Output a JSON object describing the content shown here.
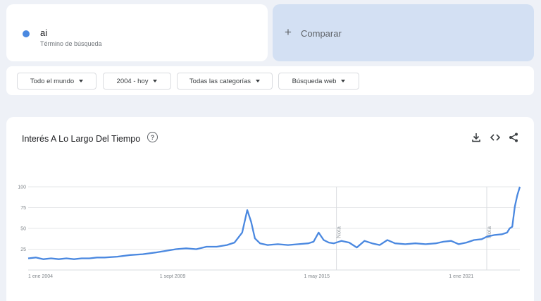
{
  "term": {
    "name": "ai",
    "subtitle": "Término de búsqueda",
    "color": "#4a88e0"
  },
  "compare": {
    "label": "Comparar"
  },
  "filters": {
    "region": "Todo el mundo",
    "time": "2004 - hoy",
    "category": "Todas las categorías",
    "search_type": "Búsqueda web"
  },
  "chart": {
    "title": "Interés A Lo Largo Del Tiempo",
    "help_icon": "question-circle-icon",
    "tools": [
      "download-icon",
      "embed-code-icon",
      "share-icon"
    ]
  },
  "chart_data": {
    "type": "line",
    "title": "Interés A Lo Largo Del Tiempo",
    "ylim": [
      0,
      100
    ],
    "yticks": [
      25,
      50,
      75,
      100
    ],
    "xticks": [
      "1 ene 2004",
      "1 sept 2009",
      "1 may 2015",
      "1 ene 2021"
    ],
    "grid": true,
    "line_color": "#4a88e0",
    "notes": [
      {
        "label": "Nota",
        "x": 2016.1
      },
      {
        "label": "Nota",
        "x": 2022.0
      }
    ],
    "series": [
      {
        "x": [
          2004.0,
          2004.3,
          2004.6,
          2004.9,
          2005.2,
          2005.5,
          2005.8,
          2006.1,
          2006.4,
          2006.7,
          2007.0,
          2007.5,
          2008.0,
          2008.5,
          2009.0,
          2009.4,
          2009.8,
          2010.2,
          2010.6,
          2011.0,
          2011.4,
          2011.8,
          2012.1,
          2012.4,
          2012.6,
          2012.75,
          2012.9,
          2013.1,
          2013.4,
          2013.8,
          2014.2,
          2014.6,
          2015.0,
          2015.2,
          2015.4,
          2015.6,
          2015.8,
          2016.0,
          2016.3,
          2016.6,
          2016.9,
          2017.2,
          2017.5,
          2017.8,
          2018.1,
          2018.4,
          2018.8,
          2019.2,
          2019.6,
          2020.0,
          2020.3,
          2020.6,
          2020.9,
          2021.2,
          2021.5,
          2021.8,
          2022.0,
          2022.3,
          2022.6,
          2022.8,
          2022.9,
          2023.0,
          2023.1,
          2023.2,
          2023.3
        ],
        "y": [
          14,
          15,
          13,
          14,
          13,
          14,
          13,
          14,
          14,
          15,
          15,
          16,
          18,
          19,
          21,
          23,
          25,
          26,
          25,
          28,
          28,
          30,
          33,
          45,
          72,
          58,
          38,
          32,
          30,
          31,
          30,
          31,
          32,
          34,
          45,
          36,
          33,
          32,
          35,
          33,
          27,
          35,
          32,
          30,
          36,
          32,
          31,
          32,
          31,
          32,
          34,
          35,
          31,
          33,
          36,
          37,
          40,
          42,
          43,
          45,
          50,
          52,
          76,
          90,
          100
        ]
      }
    ]
  }
}
